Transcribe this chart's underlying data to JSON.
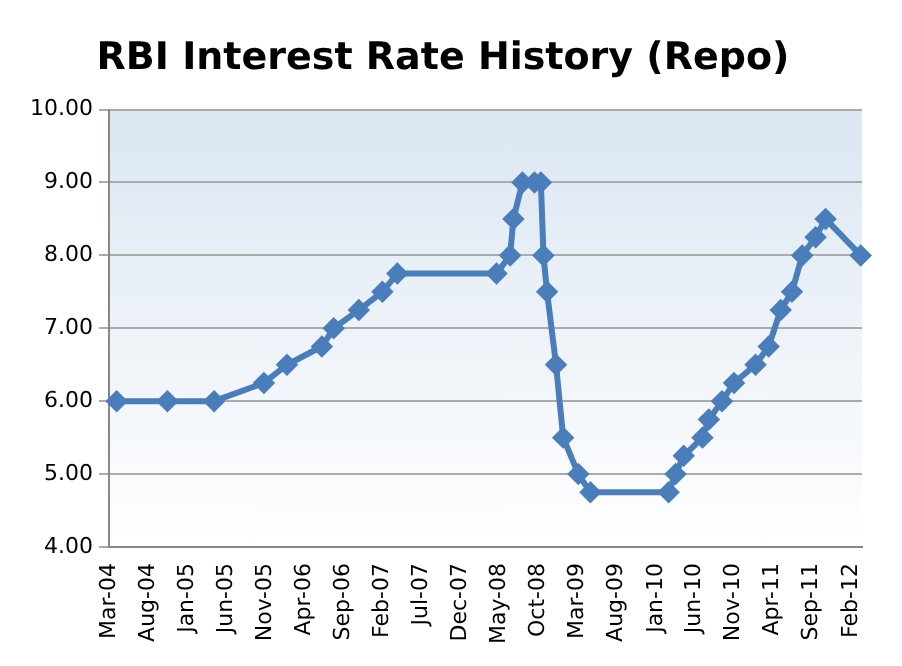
{
  "chart_data": {
    "type": "line",
    "title": "RBI Interest Rate History (Repo)",
    "series": [
      {
        "color": "#4a7ebb",
        "x": [
          "2004-03-31",
          "2004-10-15",
          "2005-04-15",
          "2005-10-26",
          "2006-01-24",
          "2006-06-09",
          "2006-07-25",
          "2006-10-31",
          "2007-01-31",
          "2007-03-30",
          "2008-04-20",
          "2008-06-12",
          "2008-06-25",
          "2008-07-30",
          "2008-09-15",
          "2008-10-10",
          "2008-10-20",
          "2008-11-03",
          "2008-12-08",
          "2009-01-05",
          "2009-03-05",
          "2009-04-21",
          "2010-02-20",
          "2010-03-19",
          "2010-04-20",
          "2010-07-02",
          "2010-07-27",
          "2010-09-16",
          "2010-11-02",
          "2011-01-25",
          "2011-03-17",
          "2011-05-03",
          "2011-06-16",
          "2011-07-26",
          "2011-09-16",
          "2011-10-25",
          "2012-03-10"
        ],
        "values": [
          6.0,
          6.0,
          6.0,
          6.25,
          6.5,
          6.75,
          7.0,
          7.25,
          7.5,
          7.75,
          7.75,
          8.0,
          8.5,
          9.0,
          9.0,
          9.0,
          8.0,
          7.5,
          6.5,
          5.5,
          5.0,
          4.75,
          4.75,
          5.0,
          5.25,
          5.5,
          5.75,
          6.0,
          6.25,
          6.5,
          6.75,
          7.25,
          7.5,
          8.0,
          8.25,
          8.5,
          8.0
        ]
      }
    ],
    "xlim": [
      "2004-03-01",
      "2012-03-15"
    ],
    "xticks": [
      {
        "value": "2004-03-01",
        "label": "Mar-04"
      },
      {
        "value": "2004-08-01",
        "label": "Aug-04"
      },
      {
        "value": "2005-01-01",
        "label": "Jan-05"
      },
      {
        "value": "2005-06-01",
        "label": "Jun-05"
      },
      {
        "value": "2005-11-01",
        "label": "Nov-05"
      },
      {
        "value": "2006-04-01",
        "label": "Apr-06"
      },
      {
        "value": "2006-09-01",
        "label": "Sep-06"
      },
      {
        "value": "2007-02-01",
        "label": "Feb-07"
      },
      {
        "value": "2007-07-01",
        "label": "Jul-07"
      },
      {
        "value": "2007-12-01",
        "label": "Dec-07"
      },
      {
        "value": "2008-05-01",
        "label": "May-08"
      },
      {
        "value": "2008-10-01",
        "label": "Oct-08"
      },
      {
        "value": "2009-03-01",
        "label": "Mar-09"
      },
      {
        "value": "2009-08-01",
        "label": "Aug-09"
      },
      {
        "value": "2010-01-01",
        "label": "Jan-10"
      },
      {
        "value": "2010-06-01",
        "label": "Jun-10"
      },
      {
        "value": "2010-11-01",
        "label": "Nov-10"
      },
      {
        "value": "2011-04-01",
        "label": "Apr-11"
      },
      {
        "value": "2011-09-01",
        "label": "Sep-11"
      },
      {
        "value": "2012-02-01",
        "label": "Feb-12"
      }
    ],
    "ylim": [
      4,
      10
    ],
    "yticks": [
      {
        "value": 4,
        "label": "4.00"
      },
      {
        "value": 5,
        "label": "5.00"
      },
      {
        "value": 6,
        "label": "6.00"
      },
      {
        "value": 7,
        "label": "7.00"
      },
      {
        "value": 8,
        "label": "8.00"
      },
      {
        "value": 9,
        "label": "9.00"
      },
      {
        "value": 10,
        "label": "10.00"
      }
    ],
    "grid": "y",
    "legend": false,
    "marker": "diamond",
    "line_style": "solid"
  }
}
